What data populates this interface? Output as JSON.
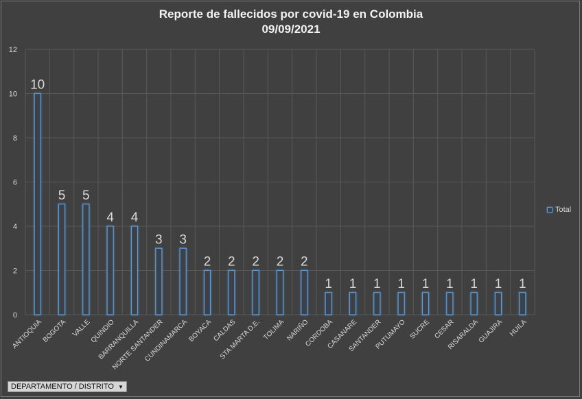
{
  "title_line1": "Reporte de fallecidos por covid-19 en Colombia",
  "title_line2": "09/09/2021",
  "legend_label": "Total",
  "filter_button_label": "DEPARTAMENTO / DISTRITO",
  "colors": {
    "bar_stroke": "#5b9bd5",
    "bar_fill": "#3a3f4a",
    "background": "#404040",
    "grid": "#595959",
    "text": "#d9d9d9"
  },
  "chart_data": {
    "type": "bar",
    "categories": [
      "ANTIOQUIA",
      "BOGOTA",
      "VALLE",
      "QUINDIO",
      "BARRANQUILLA",
      "NORTE SANTANDER",
      "CUNDINAMARCA",
      "BOYACA",
      "CALDAS",
      "STA MARTA D.E.",
      "TOLIMA",
      "NARIÑO",
      "CORDOBA",
      "CASANARE",
      "SANTANDER",
      "PUTUMAYO",
      "SUCRE",
      "CESAR",
      "RISARALDA",
      "GUAJIRA",
      "HUILA"
    ],
    "series": [
      {
        "name": "Total",
        "values": [
          10,
          5,
          5,
          4,
          4,
          3,
          3,
          2,
          2,
          2,
          2,
          2,
          1,
          1,
          1,
          1,
          1,
          1,
          1,
          1,
          1
        ]
      }
    ],
    "title": "Reporte de fallecidos por covid-19 en Colombia 09/09/2021",
    "xlabel": "",
    "ylabel": "",
    "ylim": [
      0,
      12
    ],
    "yticks": [
      0,
      2,
      4,
      6,
      8,
      10,
      12
    ],
    "grid": true,
    "legend_position": "right",
    "data_labels": true
  }
}
